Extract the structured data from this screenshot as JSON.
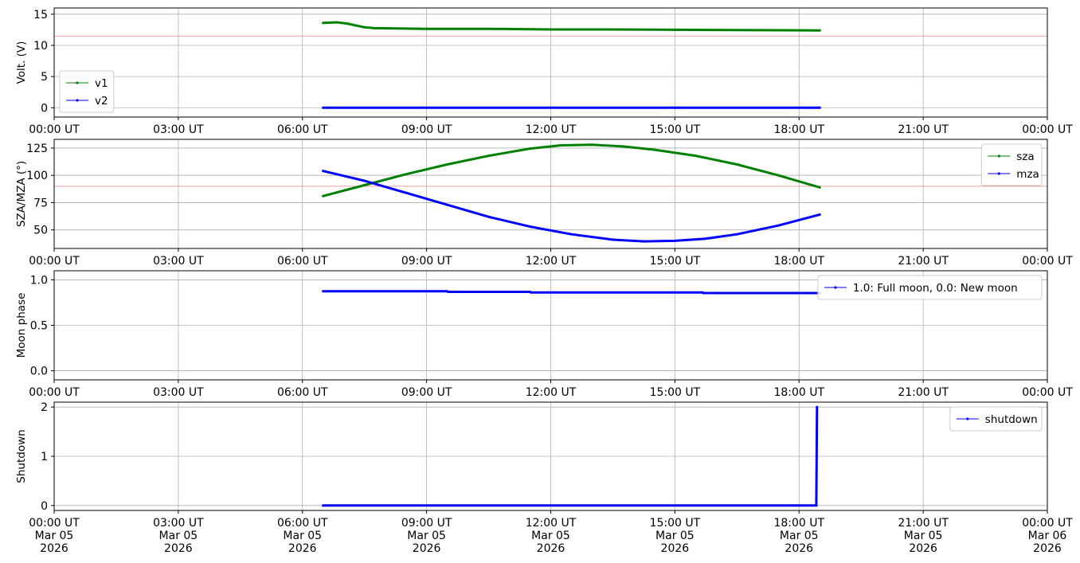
{
  "chart_data": [
    {
      "type": "line",
      "ylabel": "Volt. (V)",
      "ylim": [
        -1.5,
        16
      ],
      "yticks": [
        0,
        5,
        10,
        15
      ],
      "xlim": [
        "2026-03-05T00:00",
        "2026-03-06T00:00"
      ],
      "xticks": [
        "00:00 UT",
        "03:00 UT",
        "06:00 UT",
        "09:00 UT",
        "12:00 UT",
        "15:00 UT",
        "18:00 UT",
        "21:00 UT",
        "00:00 UT"
      ],
      "hline": {
        "y": 11.5,
        "color": "#f08080"
      },
      "legend_loc": "lower left",
      "grid": true,
      "series": [
        {
          "name": "v1",
          "color": "#008000",
          "points": [
            [
              "06:30",
              13.6
            ],
            [
              "06:50",
              13.7
            ],
            [
              "07:05",
              13.5
            ],
            [
              "07:30",
              12.9
            ],
            [
              "07:45",
              12.75
            ],
            [
              "09:00",
              12.65
            ],
            [
              "10:30",
              12.65
            ],
            [
              "12:00",
              12.55
            ],
            [
              "13:30",
              12.55
            ],
            [
              "15:00",
              12.5
            ],
            [
              "16:30",
              12.45
            ],
            [
              "18:30",
              12.4
            ]
          ]
        },
        {
          "name": "v2",
          "color": "#0000ff",
          "points": [
            [
              "06:30",
              0.0
            ],
            [
              "09:00",
              0.0
            ],
            [
              "12:00",
              0.0
            ],
            [
              "15:00",
              0.0
            ],
            [
              "18:30",
              0.0
            ]
          ]
        }
      ]
    },
    {
      "type": "line",
      "ylabel": "SZA/MZA (°)",
      "ylim": [
        33,
        133
      ],
      "yticks": [
        50,
        75,
        100,
        125
      ],
      "xlim": [
        "2026-03-05T00:00",
        "2026-03-06T00:00"
      ],
      "xticks": [
        "00:00 UT",
        "03:00 UT",
        "06:00 UT",
        "09:00 UT",
        "12:00 UT",
        "15:00 UT",
        "18:00 UT",
        "21:00 UT",
        "00:00 UT"
      ],
      "hline": {
        "y": 90,
        "color": "#f08080"
      },
      "legend_loc": "upper right",
      "grid": true,
      "series": [
        {
          "name": "sza",
          "color": "#008000",
          "points": [
            [
              "06:30",
              81
            ],
            [
              "07:30",
              91
            ],
            [
              "08:30",
              101
            ],
            [
              "09:30",
              110
            ],
            [
              "10:30",
              118
            ],
            [
              "11:30",
              124.5
            ],
            [
              "12:15",
              127.5
            ],
            [
              "13:00",
              128
            ],
            [
              "13:45",
              126.5
            ],
            [
              "14:30",
              123.5
            ],
            [
              "15:30",
              118
            ],
            [
              "16:30",
              110
            ],
            [
              "17:30",
              100
            ],
            [
              "18:30",
              89
            ]
          ]
        },
        {
          "name": "mza",
          "color": "#0000ff",
          "points": [
            [
              "06:30",
              104
            ],
            [
              "07:30",
              95
            ],
            [
              "08:30",
              84
            ],
            [
              "09:30",
              73
            ],
            [
              "10:30",
              62
            ],
            [
              "11:30",
              53
            ],
            [
              "12:30",
              46
            ],
            [
              "13:30",
              41
            ],
            [
              "14:15",
              39.5
            ],
            [
              "15:00",
              40
            ],
            [
              "15:45",
              42
            ],
            [
              "16:30",
              46
            ],
            [
              "17:30",
              54
            ],
            [
              "18:30",
              64
            ]
          ]
        }
      ]
    },
    {
      "type": "line",
      "ylabel": "Moon phase",
      "ylim": [
        -0.1,
        1.1
      ],
      "yticks": [
        "0.0",
        "0.5",
        "1.0"
      ],
      "xlim": [
        "2026-03-05T00:00",
        "2026-03-06T00:00"
      ],
      "xticks": [
        "00:00 UT",
        "03:00 UT",
        "06:00 UT",
        "09:00 UT",
        "12:00 UT",
        "15:00 UT",
        "18:00 UT",
        "21:00 UT",
        "00:00 UT"
      ],
      "legend_loc": "upper right",
      "grid": true,
      "series": [
        {
          "name": "1.0: Full moon, 0.0: New moon",
          "color": "#0000ff",
          "points": [
            [
              "06:30",
              0.875
            ],
            [
              "09:30",
              0.875
            ],
            [
              "09:31",
              0.868
            ],
            [
              "11:30",
              0.868
            ],
            [
              "11:31",
              0.862
            ],
            [
              "15:40",
              0.862
            ],
            [
              "15:41",
              0.855
            ],
            [
              "18:30",
              0.855
            ]
          ]
        }
      ]
    },
    {
      "type": "line",
      "ylabel": "Shutdown",
      "ylim": [
        -0.1,
        2.1
      ],
      "yticks": [
        0,
        1,
        2
      ],
      "xlim": [
        "2026-03-05T00:00",
        "2026-03-06T00:00"
      ],
      "xticks": [
        "00:00 UT\nMar 05\n2026",
        "03:00 UT\nMar 05\n2026",
        "06:00 UT\nMar 05\n2026",
        "09:00 UT\nMar 05\n2026",
        "12:00 UT\nMar 05\n2026",
        "15:00 UT\nMar 05\n2026",
        "18:00 UT\nMar 05\n2026",
        "21:00 UT\nMar 05\n2026",
        "00:00 UT\nMar 06\n2026"
      ],
      "legend_loc": "upper right",
      "grid": true,
      "series": [
        {
          "name": "shutdown",
          "color": "#0000ff",
          "points": [
            [
              "06:30",
              0
            ],
            [
              "18:00",
              0
            ],
            [
              "18:25",
              0
            ],
            [
              "18:26",
              2
            ]
          ]
        }
      ]
    }
  ]
}
